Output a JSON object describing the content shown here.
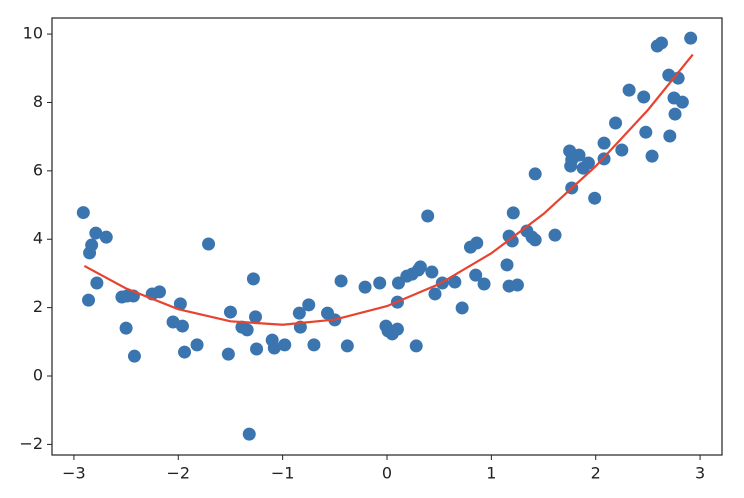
{
  "chart_data": {
    "type": "scatter",
    "xlim": [
      -3.21,
      3.21
    ],
    "ylim": [
      -2.31,
      10.47
    ],
    "xticks": [
      {
        "value": -3,
        "label": "−3"
      },
      {
        "value": -2,
        "label": "−2"
      },
      {
        "value": -1,
        "label": "−1"
      },
      0,
      1,
      2,
      3
    ],
    "yticks": [
      {
        "value": -2,
        "label": "−2"
      },
      0,
      2,
      4,
      6,
      8,
      10
    ],
    "grid": false,
    "series": [
      {
        "type": "scatter",
        "color": "#3b75af",
        "x": [
          -2.91,
          -2.83,
          -2.85,
          -2.79,
          -2.78,
          -2.86,
          -2.69,
          -2.54,
          -2.49,
          -2.43,
          -2.5,
          -2.42,
          -2.25,
          -2.18,
          -2.05,
          -1.98,
          -1.96,
          -1.94,
          -1.82,
          -1.71,
          -1.52,
          -1.5,
          -1.39,
          -1.34,
          -1.28,
          -1.32,
          -1.26,
          -1.25,
          -1.1,
          -1.08,
          -0.98,
          -0.84,
          -0.83,
          -0.75,
          -0.7,
          -0.57,
          -0.5,
          -0.44,
          -0.38,
          -0.21,
          -0.07,
          -0.01,
          0.01,
          0.05,
          0.1,
          0.1,
          0.11,
          0.19,
          0.24,
          0.3,
          0.32,
          0.28,
          0.39,
          0.43,
          0.46,
          0.53,
          0.65,
          0.72,
          0.8,
          0.86,
          0.85,
          0.93,
          1.15,
          1.17,
          1.2,
          1.21,
          1.17,
          1.25,
          1.34,
          1.39,
          1.42,
          1.42,
          1.61,
          1.75,
          1.77,
          1.76,
          1.77,
          1.84,
          1.88,
          1.93,
          1.99,
          2.08,
          2.08,
          2.19,
          2.25,
          2.32,
          2.46,
          2.48,
          2.54,
          2.59,
          2.63,
          2.7,
          2.71,
          2.75,
          2.76,
          2.79,
          2.83,
          2.91
        ],
        "values": [
          4.78,
          3.83,
          3.6,
          4.18,
          2.72,
          2.22,
          4.06,
          2.31,
          2.34,
          2.34,
          1.4,
          0.58,
          2.4,
          2.46,
          1.58,
          2.11,
          1.46,
          0.7,
          0.91,
          3.86,
          0.64,
          1.87,
          1.43,
          1.35,
          2.84,
          -1.7,
          1.73,
          0.79,
          1.05,
          0.82,
          0.91,
          1.84,
          1.43,
          2.08,
          0.91,
          1.84,
          1.64,
          2.78,
          0.88,
          2.6,
          2.72,
          1.46,
          1.32,
          1.23,
          1.37,
          2.16,
          2.72,
          2.92,
          2.98,
          3.1,
          3.19,
          0.88,
          4.68,
          3.04,
          2.4,
          2.72,
          2.75,
          1.99,
          3.77,
          3.89,
          2.95,
          2.69,
          3.25,
          4.09,
          3.95,
          4.77,
          2.63,
          2.66,
          4.24,
          4.06,
          3.98,
          5.91,
          4.12,
          6.58,
          6.32,
          6.14,
          5.5,
          6.46,
          6.08,
          6.23,
          5.2,
          6.81,
          6.35,
          7.4,
          6.61,
          8.36,
          8.16,
          7.13,
          6.43,
          9.65,
          9.74,
          8.8,
          7.02,
          8.13,
          7.66,
          8.71,
          8.01,
          9.88
        ]
      },
      {
        "type": "line",
        "color": "#e8432e",
        "x": [
          -2.9,
          -2.5,
          -2.0,
          -1.5,
          -1.0,
          -0.5,
          0,
          0.5,
          1.0,
          1.5,
          2.0,
          2.5,
          2.93
        ],
        "values": [
          3.22,
          2.56,
          1.955,
          1.6,
          1.5,
          1.65,
          2.045,
          2.69,
          3.59,
          4.74,
          6.135,
          7.78,
          9.4
        ]
      }
    ]
  }
}
